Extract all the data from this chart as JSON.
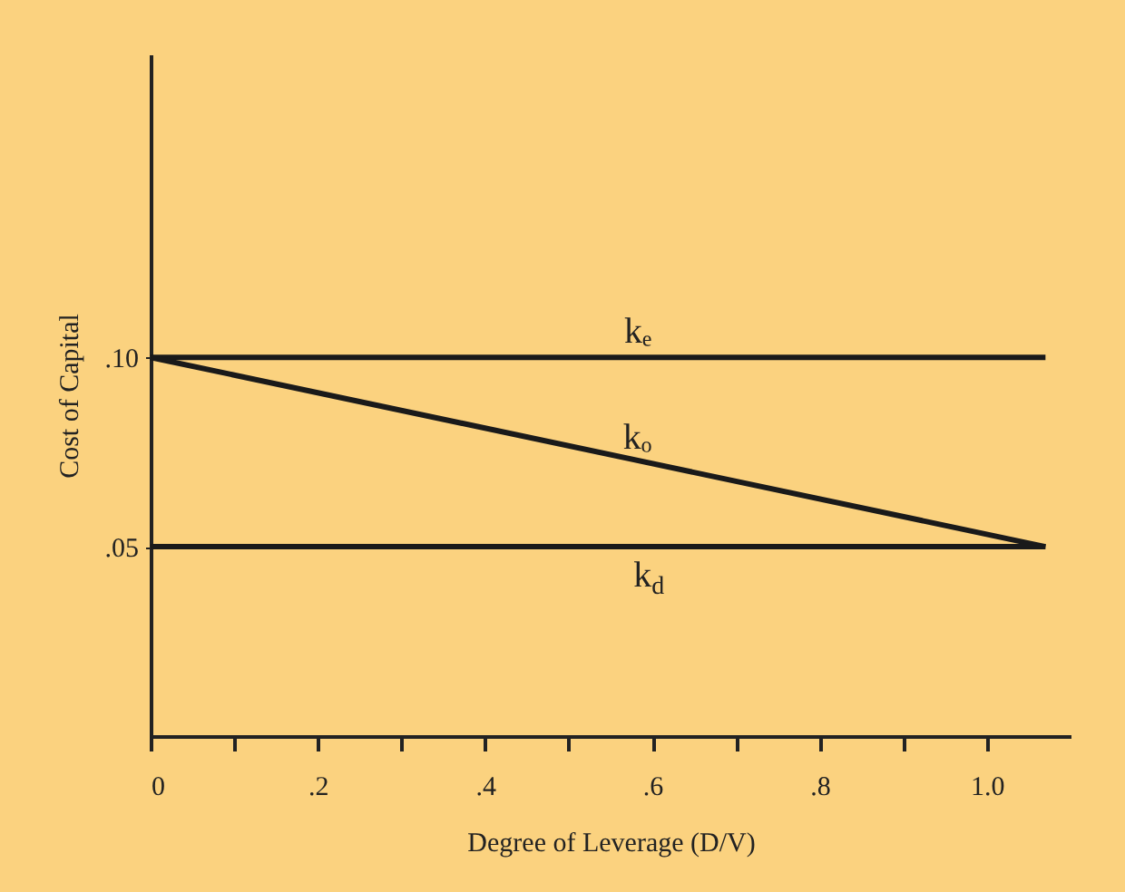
{
  "chart_data": {
    "type": "line",
    "xlabel": "Degree of Leverage (D/V)",
    "ylabel": "Cost of Capital",
    "xlim": [
      0,
      1.1
    ],
    "ylim": [
      0,
      0.18
    ],
    "xticks": [
      {
        "value": 0,
        "label": "0"
      },
      {
        "value": 0.1,
        "label": null
      },
      {
        "value": 0.2,
        "label": ".2"
      },
      {
        "value": 0.3,
        "label": null
      },
      {
        "value": 0.4,
        "label": ".4"
      },
      {
        "value": 0.5,
        "label": null
      },
      {
        "value": 0.6,
        "label": ".6"
      },
      {
        "value": 0.7,
        "label": null
      },
      {
        "value": 0.8,
        "label": ".8"
      },
      {
        "value": 0.9,
        "label": null
      },
      {
        "value": 1.0,
        "label": "1.0"
      }
    ],
    "yticks": [
      {
        "value": 0.05,
        "label": ".05"
      },
      {
        "value": 0.1,
        "label": ".10"
      }
    ],
    "grid": false,
    "legend": false,
    "marker": "none",
    "line_style": "solid",
    "x": [
      0,
      1.07
    ],
    "series": [
      {
        "name": "kₑ",
        "color": "#1a1a1a",
        "values": [
          0.1,
          0.1
        ]
      },
      {
        "name": "kₒ",
        "color": "#1a1a1a",
        "values": [
          0.1,
          0.05
        ]
      },
      {
        "name": "k$_{d}$",
        "color": "#1a1a1a",
        "values": [
          0.05,
          0.05
        ]
      }
    ]
  }
}
